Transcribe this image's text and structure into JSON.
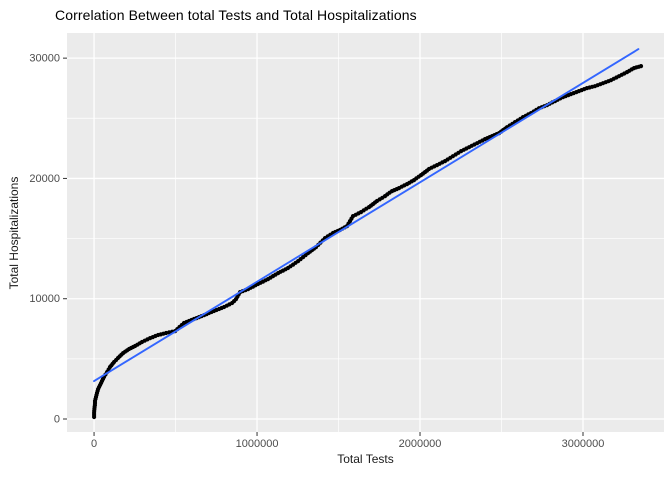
{
  "chart_data": {
    "type": "scatter",
    "title": "Correlation Between total Tests and Total Hospitalizations",
    "xlabel": "Total Tests",
    "ylabel": "Total Hospitalizations",
    "legend": "none",
    "grid": "major and minor gridlines on",
    "panel_background": "#EBEBEB",
    "gridline_color": "#FFFFFF",
    "tick_label_color": "#4D4D4D",
    "point_color": "#000000",
    "trend_color": "#3366FF",
    "xlim": [
      -166000,
      3497000
    ],
    "ylim": [
      -1080,
      32090
    ],
    "x_ticks": [
      0,
      1000000,
      2000000,
      3000000
    ],
    "x_tick_labels": [
      "0",
      "1000000",
      "2000000",
      "3000000"
    ],
    "x_minor_ticks": [
      500000,
      1500000,
      2500000,
      3500000
    ],
    "y_ticks": [
      0,
      10000,
      20000,
      30000
    ],
    "y_tick_labels": [
      "0",
      "10000",
      "20000",
      "30000"
    ],
    "y_minor_ticks": [
      5000,
      15000,
      25000
    ],
    "trend_line": {
      "x1": 0,
      "y1": 3150,
      "x2": 3340000,
      "y2": 30750
    },
    "points": [
      [
        0,
        170
      ],
      [
        0,
        500
      ],
      [
        2000,
        830
      ],
      [
        5000,
        1160
      ],
      [
        6000,
        1500
      ],
      [
        12000,
        1830
      ],
      [
        18000,
        2160
      ],
      [
        25000,
        2490
      ],
      [
        37000,
        2830
      ],
      [
        49000,
        3160
      ],
      [
        61000,
        3490
      ],
      [
        80000,
        3910
      ],
      [
        98000,
        4320
      ],
      [
        123000,
        4740
      ],
      [
        147000,
        5070
      ],
      [
        178000,
        5480
      ],
      [
        215000,
        5820
      ],
      [
        252000,
        6070
      ],
      [
        294000,
        6400
      ],
      [
        344000,
        6730
      ],
      [
        393000,
        6980
      ],
      [
        442000,
        7150
      ],
      [
        497000,
        7310
      ],
      [
        552000,
        7980
      ],
      [
        613000,
        8310
      ],
      [
        675000,
        8640
      ],
      [
        736000,
        8980
      ],
      [
        798000,
        9310
      ],
      [
        847000,
        9640
      ],
      [
        871000,
        9970
      ],
      [
        896000,
        10550
      ],
      [
        945000,
        10800
      ],
      [
        1006000,
        11220
      ],
      [
        1067000,
        11630
      ],
      [
        1129000,
        12130
      ],
      [
        1190000,
        12550
      ],
      [
        1252000,
        13130
      ],
      [
        1313000,
        13790
      ],
      [
        1362000,
        14290
      ],
      [
        1417000,
        15040
      ],
      [
        1466000,
        15460
      ],
      [
        1509000,
        15710
      ],
      [
        1552000,
        16040
      ],
      [
        1589000,
        16870
      ],
      [
        1638000,
        17200
      ],
      [
        1687000,
        17620
      ],
      [
        1736000,
        18120
      ],
      [
        1785000,
        18530
      ],
      [
        1828000,
        18950
      ],
      [
        1871000,
        19200
      ],
      [
        1920000,
        19530
      ],
      [
        1963000,
        19860
      ],
      [
        2006000,
        20280
      ],
      [
        2055000,
        20780
      ],
      [
        2104000,
        21110
      ],
      [
        2153000,
        21440
      ],
      [
        2202000,
        21850
      ],
      [
        2252000,
        22270
      ],
      [
        2301000,
        22600
      ],
      [
        2350000,
        22930
      ],
      [
        2399000,
        23270
      ],
      [
        2442000,
        23520
      ],
      [
        2485000,
        23770
      ],
      [
        2534000,
        24260
      ],
      [
        2583000,
        24680
      ],
      [
        2632000,
        25100
      ],
      [
        2681000,
        25430
      ],
      [
        2730000,
        25840
      ],
      [
        2779000,
        26090
      ],
      [
        2828000,
        26430
      ],
      [
        2877000,
        26760
      ],
      [
        2926000,
        27010
      ],
      [
        2975000,
        27260
      ],
      [
        3024000,
        27510
      ],
      [
        3073000,
        27670
      ],
      [
        3123000,
        27920
      ],
      [
        3172000,
        28170
      ],
      [
        3221000,
        28500
      ],
      [
        3270000,
        28840
      ],
      [
        3313000,
        29170
      ],
      [
        3356000,
        29340
      ]
    ]
  }
}
